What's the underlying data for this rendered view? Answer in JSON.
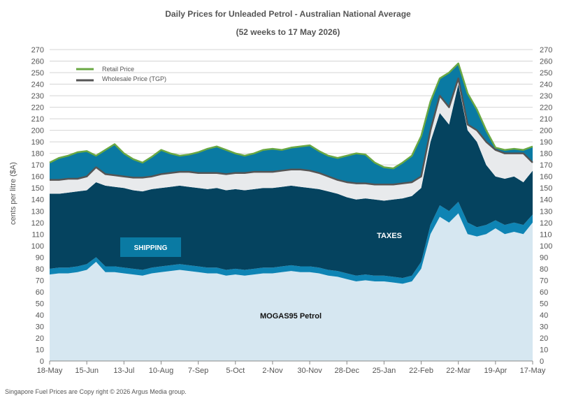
{
  "chart_data": {
    "type": "area",
    "title": "Daily  Prices for Unleaded  Petrol  - Australian  National  Average",
    "subtitle": "(52 weeks to 17 May 2026)",
    "xlabel": "",
    "ylabel": "cents per litre ($A)",
    "ylim": [
      0,
      270
    ],
    "ytick_step": 10,
    "grid": true,
    "legend_position": "top-left",
    "x_ticks": [
      "18-May",
      "15-Jun",
      "13-Jul",
      "10-Aug",
      "7-Sep",
      "5-Oct",
      "2-Nov",
      "30-Nov",
      "28-Dec",
      "25-Jan",
      "22-Feb",
      "22-Mar",
      "19-Apr",
      "17-May"
    ],
    "x": [
      "18-May",
      "25-May",
      "1-Jun",
      "8-Jun",
      "15-Jun",
      "22-Jun",
      "29-Jun",
      "6-Jul",
      "13-Jul",
      "20-Jul",
      "27-Jul",
      "3-Aug",
      "10-Aug",
      "17-Aug",
      "24-Aug",
      "31-Aug",
      "7-Sep",
      "14-Sep",
      "21-Sep",
      "28-Sep",
      "5-Oct",
      "12-Oct",
      "19-Oct",
      "26-Oct",
      "2-Nov",
      "9-Nov",
      "16-Nov",
      "23-Nov",
      "30-Nov",
      "7-Dec",
      "14-Dec",
      "21-Dec",
      "28-Dec",
      "4-Jan",
      "11-Jan",
      "18-Jan",
      "25-Jan",
      "1-Feb",
      "8-Feb",
      "15-Feb",
      "22-Feb",
      "1-Mar",
      "8-Mar",
      "15-Mar",
      "22-Mar",
      "29-Mar",
      "5-Apr",
      "12-Apr",
      "19-Apr",
      "26-Apr",
      "3-May",
      "10-May",
      "17-May"
    ],
    "series": [
      {
        "name": "MOGAS95 Petrol",
        "color": "#d6e7f1",
        "values": [
          75,
          76,
          76,
          77,
          79,
          86,
          77,
          77,
          76,
          75,
          74,
          76,
          77,
          78,
          79,
          78,
          77,
          76,
          76,
          74,
          75,
          74,
          75,
          76,
          76,
          77,
          78,
          77,
          77,
          76,
          74,
          73,
          71,
          69,
          70,
          69,
          69,
          68,
          67,
          69,
          80,
          110,
          125,
          120,
          128,
          110,
          108,
          110,
          115,
          110,
          112,
          110,
          120
        ]
      },
      {
        "name": "SHIPPING",
        "color": "#0e84b4",
        "values": [
          80,
          81,
          81,
          82,
          84,
          90,
          82,
          82,
          81,
          80,
          79,
          81,
          82,
          83,
          84,
          83,
          82,
          81,
          81,
          79,
          80,
          79,
          80,
          81,
          81,
          82,
          83,
          82,
          82,
          81,
          79,
          78,
          76,
          74,
          75,
          74,
          74,
          73,
          72,
          74,
          86,
          118,
          135,
          130,
          138,
          120,
          116,
          118,
          122,
          118,
          120,
          118,
          127
        ]
      },
      {
        "name": "TAXES",
        "color": "#05435f",
        "values": [
          145,
          145,
          146,
          147,
          148,
          155,
          152,
          151,
          150,
          148,
          147,
          149,
          150,
          151,
          152,
          151,
          150,
          149,
          150,
          148,
          149,
          148,
          149,
          150,
          150,
          151,
          152,
          151,
          150,
          149,
          147,
          145,
          142,
          140,
          141,
          140,
          139,
          140,
          141,
          143,
          150,
          190,
          215,
          205,
          240,
          200,
          190,
          170,
          160,
          158,
          160,
          155,
          165
        ]
      },
      {
        "name": "Wholesale Price (TGP)",
        "color": "#e8eaec",
        "line_color": "#555555",
        "values": [
          157,
          157,
          158,
          158,
          160,
          168,
          162,
          161,
          160,
          159,
          159,
          160,
          162,
          163,
          164,
          164,
          163,
          163,
          163,
          162,
          163,
          163,
          164,
          164,
          164,
          165,
          166,
          166,
          165,
          163,
          160,
          157,
          155,
          154,
          154,
          153,
          153,
          153,
          154,
          155,
          160,
          200,
          230,
          220,
          245,
          205,
          200,
          190,
          183,
          180,
          180,
          180,
          172
        ]
      },
      {
        "name": "Retail Price",
        "color": "#0a7aa3",
        "line_color": "#6aa843",
        "values": [
          172,
          176,
          178,
          181,
          182,
          178,
          183,
          188,
          180,
          175,
          172,
          177,
          183,
          180,
          178,
          179,
          181,
          184,
          186,
          183,
          180,
          178,
          180,
          183,
          184,
          183,
          185,
          186,
          187,
          182,
          178,
          176,
          178,
          180,
          179,
          172,
          168,
          167,
          172,
          178,
          195,
          225,
          245,
          250,
          258,
          232,
          218,
          200,
          185,
          183,
          184,
          183,
          186
        ]
      }
    ],
    "annotations": [
      "SHIPPING",
      "TAXES",
      "MOGAS95 Petrol"
    ]
  },
  "footer": {
    "copyright": "Singapore  Fuel Prices are  Copy right © 2026 Argus Media group."
  }
}
